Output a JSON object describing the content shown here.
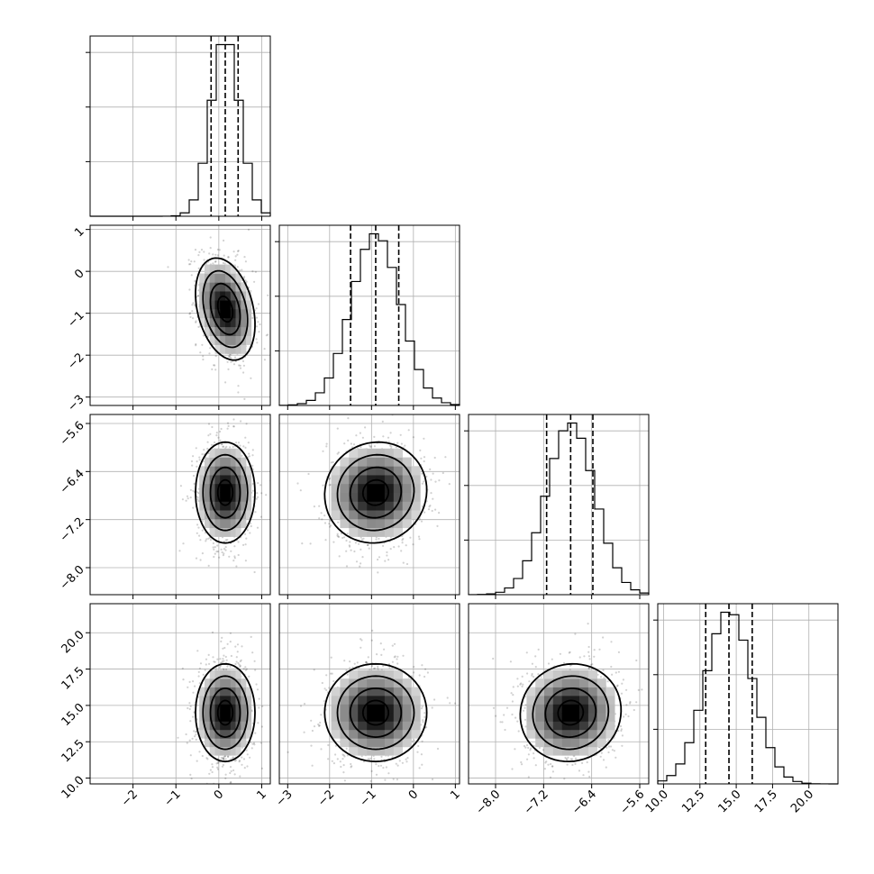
{
  "chart_data": {
    "type": "corner",
    "title": "",
    "grid": true,
    "parameters": [
      {
        "index": 0,
        "lim": [
          -3.0,
          1.2
        ],
        "median": 0.15,
        "q16": -0.18,
        "q84": 0.45,
        "sd": 0.33,
        "ticks": [
          -2,
          -1,
          0,
          1
        ],
        "tick_labels": [
          "−2",
          "−1",
          "0",
          "1"
        ]
      },
      {
        "index": 1,
        "lim": [
          -3.2,
          1.1
        ],
        "median": -0.9,
        "q16": -1.5,
        "q84": -0.35,
        "sd": 0.58,
        "ticks": [
          -3,
          -2,
          -1,
          0,
          1
        ],
        "tick_labels": [
          "−3",
          "−2",
          "−1",
          "0",
          "1"
        ]
      },
      {
        "index": 2,
        "lim": [
          -8.45,
          -5.45
        ],
        "median": -6.75,
        "q16": -7.15,
        "q84": -6.38,
        "sd": 0.4,
        "ticks": [
          -8.0,
          -7.2,
          -6.4,
          -5.6
        ],
        "tick_labels": [
          "−8.0",
          "−7.2",
          "−6.4",
          "−5.6"
        ]
      },
      {
        "index": 3,
        "lim": [
          9.6,
          22.0
        ],
        "median": 14.5,
        "q16": 12.9,
        "q84": 16.1,
        "sd": 1.6,
        "ticks": [
          10.0,
          12.5,
          15.0,
          17.5,
          20.0
        ],
        "tick_labels": [
          "10.0",
          "12.5",
          "15.0",
          "17.5",
          "20.0"
        ]
      }
    ],
    "pairs": [
      {
        "row": 1,
        "col": 0,
        "correlation": -0.3
      },
      {
        "row": 2,
        "col": 0,
        "correlation": 0.0
      },
      {
        "row": 2,
        "col": 1,
        "correlation": 0.05
      },
      {
        "row": 3,
        "col": 0,
        "correlation": 0.0
      },
      {
        "row": 3,
        "col": 1,
        "correlation": 0.0
      },
      {
        "row": 3,
        "col": 2,
        "correlation": 0.05
      }
    ],
    "contour_levels_sigma": [
      0.5,
      1.0,
      1.5,
      2.0
    ]
  }
}
